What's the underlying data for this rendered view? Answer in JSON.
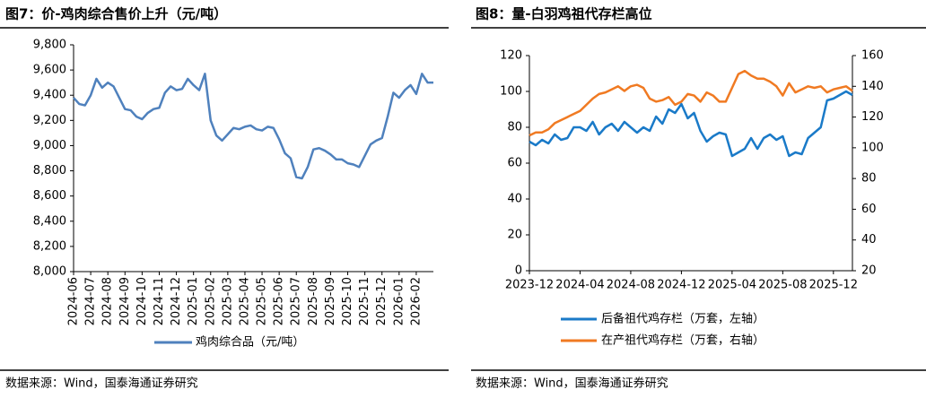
{
  "chart_data": [
    {
      "type": "line",
      "title": "图7：价-鸡肉综合售价上升（元/吨）",
      "categories": [
        "2024-06",
        null,
        null,
        "2024-07",
        null,
        null,
        "2024-08",
        null,
        null,
        "2024-09",
        null,
        null,
        "2024-10",
        null,
        null,
        "2024-11",
        null,
        null,
        "2024-12",
        null,
        null,
        "2025-01",
        null,
        null,
        "2025-02",
        null,
        null,
        "2025-03",
        null,
        null,
        "2025-04",
        null,
        null,
        "2025-05",
        null,
        null,
        "2025-06",
        null,
        null,
        "2025-07",
        null,
        null,
        "2025-08",
        null,
        null,
        "2025-09",
        null,
        null,
        "2025-10",
        null,
        null,
        "2025-11",
        null,
        null,
        "2025-12",
        null,
        null,
        "2026-01",
        null,
        null,
        "2026-02",
        null,
        null,
        null
      ],
      "series": [
        {
          "name": "鸡肉综合品（元/吨）",
          "color": "#4f81bd",
          "values": [
            9380,
            9330,
            9320,
            9400,
            9530,
            9460,
            9500,
            9470,
            9380,
            9290,
            9280,
            9230,
            9210,
            9260,
            9290,
            9300,
            9420,
            9470,
            9440,
            9450,
            9530,
            9480,
            9440,
            9570,
            9200,
            9080,
            9040,
            9090,
            9140,
            9130,
            9150,
            9160,
            9130,
            9120,
            9150,
            9140,
            9050,
            8940,
            8900,
            8750,
            8740,
            8830,
            8970,
            8980,
            8960,
            8930,
            8890,
            8890,
            8860,
            8850,
            8830,
            8920,
            9010,
            9040,
            9060,
            9230,
            9420,
            9380,
            9440,
            9480,
            9410,
            9570,
            9500,
            9500
          ]
        }
      ],
      "ylim": [
        8000,
        9800
      ],
      "yticks": [
        {
          "value": 8000,
          "label": "8,000"
        },
        {
          "value": 8200,
          "label": "8,200"
        },
        {
          "value": 8400,
          "label": "8,400"
        },
        {
          "value": 8600,
          "label": "8,600"
        },
        {
          "value": 8800,
          "label": "8,800"
        },
        {
          "value": 9000,
          "label": "9,000"
        },
        {
          "value": 9200,
          "label": "9,200"
        },
        {
          "value": 9400,
          "label": "9,400"
        },
        {
          "value": 9600,
          "label": "9,600"
        },
        {
          "value": 9800,
          "label": "9,800"
        }
      ],
      "source": "数据来源：Wind，国泰海通证券研究"
    },
    {
      "type": "line",
      "title": "图8：量-白羽鸡祖代存栏高位",
      "categories": [
        "2023-12",
        null,
        null,
        null,
        null,
        null,
        null,
        null,
        "2024-04",
        null,
        null,
        null,
        null,
        null,
        null,
        null,
        "2024-08",
        null,
        null,
        null,
        null,
        null,
        null,
        null,
        "2024-12",
        null,
        null,
        null,
        null,
        null,
        null,
        null,
        "2025-04",
        null,
        null,
        null,
        null,
        null,
        null,
        null,
        "2025-08",
        null,
        null,
        null,
        null,
        null,
        null,
        null,
        "2025-12",
        null,
        null,
        null
      ],
      "series": [
        {
          "name": "后备祖代鸡存栏（万套，左轴）",
          "color": "#1a7ac8",
          "values": [
            72,
            70,
            73,
            71,
            76,
            73,
            74,
            80,
            80,
            78,
            83,
            76,
            80,
            82,
            78,
            83,
            80,
            77,
            80,
            78,
            86,
            82,
            90,
            88,
            93,
            85,
            88,
            78,
            72,
            75,
            77,
            76,
            64,
            66,
            68,
            74,
            68,
            74,
            76,
            73,
            75,
            64,
            66,
            65,
            74,
            77,
            80,
            95,
            96,
            98,
            100,
            98
          ]
        },
        {
          "name": "在产祖代鸡存栏（万套，右轴）",
          "color": "#f07a22",
          "axis": "y2",
          "values": [
            108,
            110,
            110,
            112,
            116,
            118,
            120,
            122,
            124,
            128,
            132,
            135,
            136,
            138,
            140,
            137,
            140,
            141,
            139,
            132,
            130,
            131,
            133,
            128,
            130,
            135,
            134,
            130,
            136,
            134,
            130,
            130,
            139,
            148,
            150,
            147,
            145,
            145,
            143,
            140,
            134,
            142,
            136,
            138,
            140,
            139,
            140,
            136,
            138,
            139,
            140,
            137
          ]
        }
      ],
      "ylim": [
        0,
        120
      ],
      "yticks": [
        0,
        20,
        40,
        60,
        80,
        100,
        120
      ],
      "y2lim": [
        20,
        160
      ],
      "y2ticks": [
        20,
        40,
        60,
        80,
        100,
        120,
        140,
        160
      ],
      "source": "数据来源：Wind，国泰海通证券研究"
    }
  ]
}
